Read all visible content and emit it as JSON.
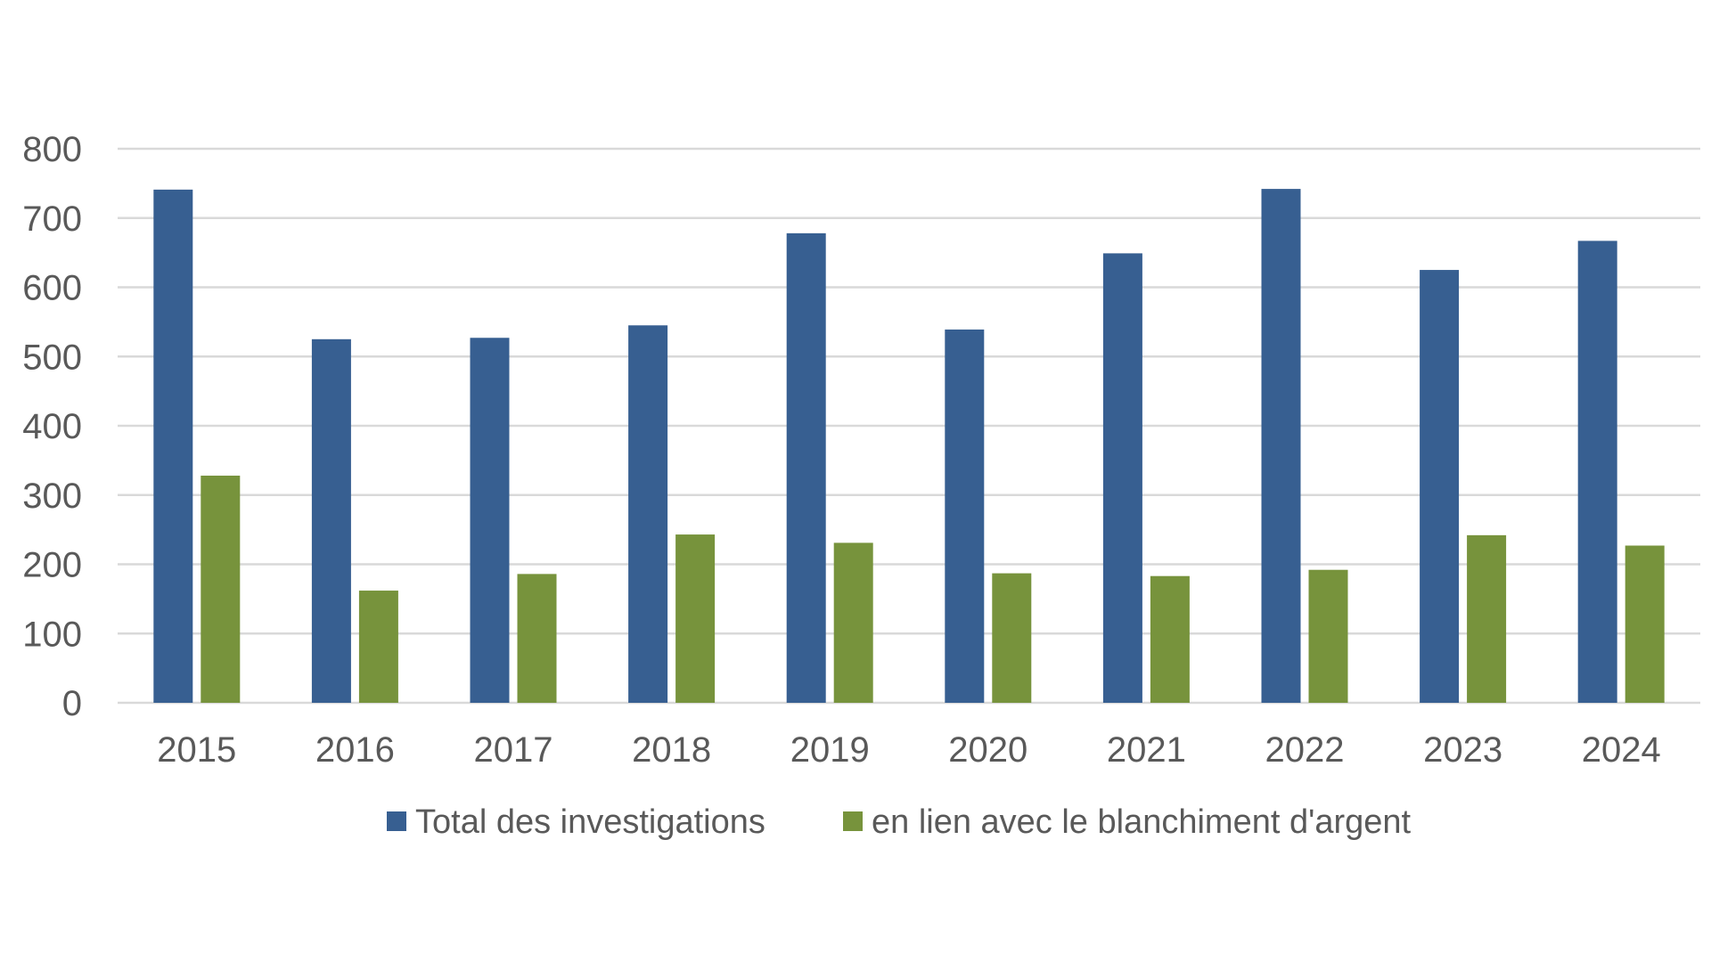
{
  "chart_data": {
    "type": "bar",
    "title": "",
    "xlabel": "",
    "ylabel": "",
    "categories": [
      "2015",
      "2016",
      "2017",
      "2018",
      "2019",
      "2020",
      "2021",
      "2022",
      "2023",
      "2024"
    ],
    "series": [
      {
        "name": "Total des investigations",
        "color": "#375f91",
        "values": [
          741,
          525,
          527,
          545,
          678,
          539,
          649,
          742,
          625,
          667
        ]
      },
      {
        "name": "en lien avec le blanchiment d'argent",
        "color": "#77933c",
        "values": [
          328,
          162,
          186,
          243,
          231,
          187,
          183,
          192,
          242,
          227
        ]
      }
    ],
    "ylim": [
      0,
      800
    ],
    "yticks": [
      "0",
      "100",
      "200",
      "300",
      "400",
      "500",
      "600",
      "700",
      "800"
    ],
    "grid": true,
    "legend_position": "bottom-center"
  }
}
